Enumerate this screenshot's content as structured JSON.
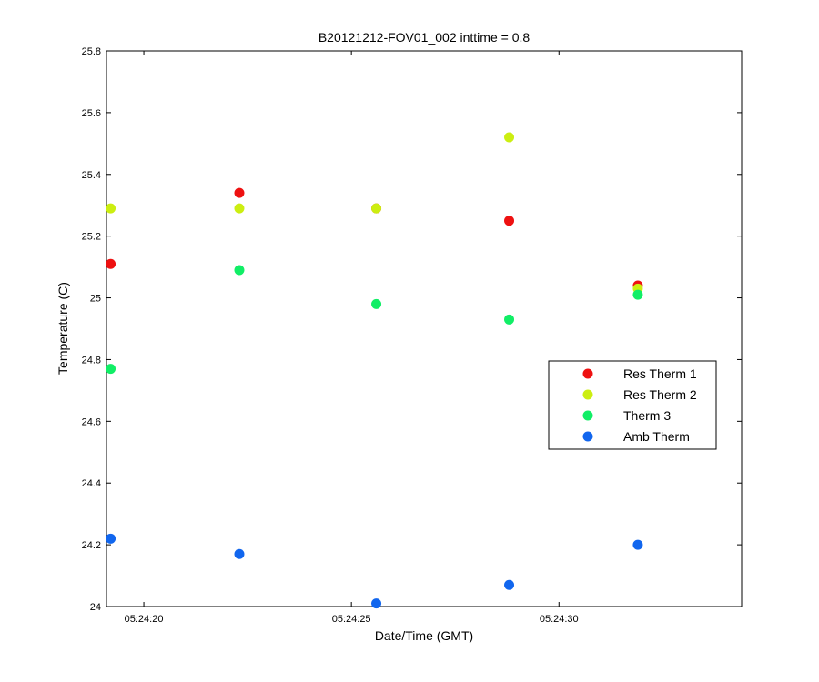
{
  "chart_data": {
    "type": "scatter",
    "title": "B20121212-FOV01_002 inttime = 0.8",
    "xlabel": "Date/Time (GMT)",
    "ylabel": "Temperature (C)",
    "x_axis_kind": "time",
    "xlim": [
      "05:24:19.1",
      "05:24:34.4"
    ],
    "ylim": [
      24,
      25.8
    ],
    "x_ticks": [
      "05:24:20",
      "05:24:25",
      "05:24:30"
    ],
    "y_ticks": [
      "24",
      "24.2",
      "24.4",
      "24.6",
      "24.8",
      "25",
      "25.2",
      "25.4",
      "25.6",
      "25.8"
    ],
    "grid": false,
    "legend_position": "right",
    "x": [
      "05:24:19.2",
      "05:24:22.3",
      "05:24:25.6",
      "05:24:28.8",
      "05:24:31.9"
    ],
    "series": [
      {
        "name": "Res Therm 1",
        "color": "#ee1111",
        "values": [
          25.11,
          25.34,
          25.29,
          25.25,
          25.04
        ]
      },
      {
        "name": "Res Therm 2",
        "color": "#ccee11",
        "values": [
          25.29,
          25.29,
          25.29,
          25.52,
          25.03
        ]
      },
      {
        "name": "Therm 3",
        "color": "#11ee66",
        "values": [
          24.77,
          25.09,
          24.98,
          24.93,
          25.01
        ]
      },
      {
        "name": "Amb Therm",
        "color": "#1166ee",
        "values": [
          24.22,
          24.17,
          24.01,
          24.07,
          24.2
        ]
      }
    ]
  }
}
